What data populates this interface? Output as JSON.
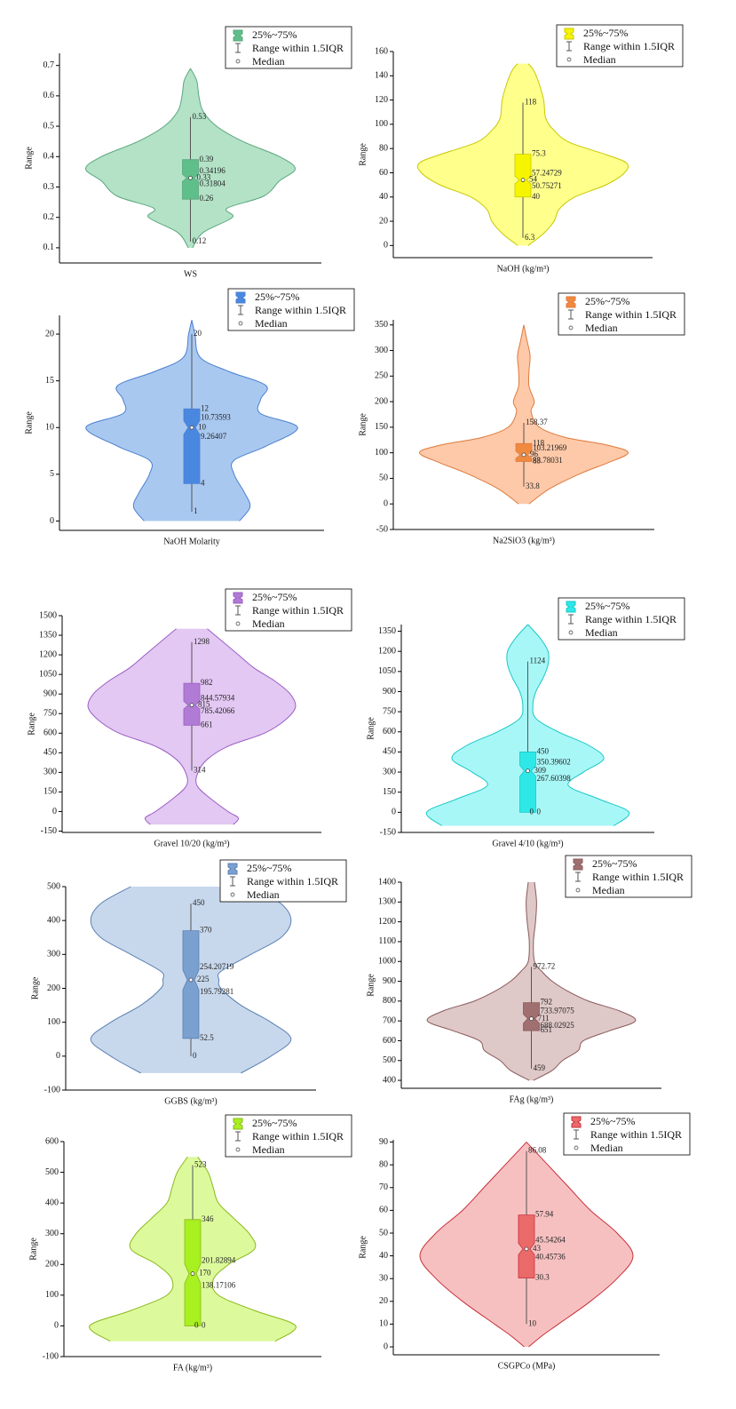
{
  "chart_data": [
    {
      "type": "violin",
      "x_label": "WS",
      "y_label": "Range",
      "legend": [
        "25%~75%",
        "Range within 1.5IQR",
        "Median"
      ],
      "color": {
        "fill": "#b3e2c7",
        "stroke": "#5aa77d",
        "box": "#5fbf8a"
      },
      "ylim": [
        0.05,
        0.74
      ],
      "yticks": [
        0.1,
        0.2,
        0.3,
        0.4,
        0.5,
        0.6,
        0.7
      ],
      "box": {
        "whisker_low": 0.12,
        "q1": 0.26,
        "notch_low": 0.31804,
        "median": 0.33,
        "notch_high": 0.34196,
        "q3": 0.39,
        "whisker_high": 0.53
      },
      "violin": {
        "y": [
          0.1,
          0.15,
          0.2,
          0.23,
          0.27,
          0.32,
          0.36,
          0.4,
          0.45,
          0.5,
          0.55,
          0.6,
          0.65,
          0.69
        ],
        "density": [
          0.02,
          0.12,
          0.4,
          0.35,
          0.7,
          0.85,
          1.0,
          0.85,
          0.5,
          0.25,
          0.12,
          0.08,
          0.06,
          0.0
        ]
      }
    },
    {
      "type": "violin",
      "x_label": "NaOH (kg/m³)",
      "y_label": "Range",
      "legend": [
        "25%~75%",
        "Range within 1.5IQR",
        "Median"
      ],
      "color": {
        "fill": "#ffff8c",
        "stroke": "#c8c800",
        "box": "#f5f500"
      },
      "ylim": [
        -10,
        160
      ],
      "yticks": [
        0,
        20,
        40,
        60,
        80,
        100,
        120,
        140,
        160
      ],
      "box": {
        "whisker_low": 6.3,
        "q1": 40,
        "notch_low": 50.75271,
        "median": 54,
        "notch_high": 57.24729,
        "q3": 75.3,
        "whisker_high": 118
      },
      "violin": {
        "y": [
          0,
          10,
          20,
          30,
          40,
          50,
          60,
          68,
          75,
          85,
          95,
          105,
          120,
          135,
          145,
          150
        ],
        "density": [
          0.05,
          0.2,
          0.3,
          0.35,
          0.5,
          0.8,
          0.98,
          1.0,
          0.8,
          0.45,
          0.3,
          0.22,
          0.2,
          0.15,
          0.1,
          0.05
        ]
      }
    },
    {
      "type": "violin",
      "x_label": "NaOH Molarity",
      "y_label": "Range",
      "legend": [
        "25%~75%",
        "Range within 1.5IQR",
        "Median"
      ],
      "color": {
        "fill": "#a9c8f0",
        "stroke": "#4a7fcf",
        "box": "#4a88e0"
      },
      "ylim": [
        -1,
        22
      ],
      "yticks": [
        0,
        5,
        10,
        15,
        20
      ],
      "box": {
        "whisker_low": 1,
        "q1": 4,
        "notch_low": 9.26407,
        "median": 10,
        "notch_high": 10.73593,
        "q3": 12,
        "whisker_high": 20
      },
      "violin": {
        "y": [
          0,
          1.5,
          3,
          5,
          6.5,
          8,
          10,
          11.5,
          13,
          14.5,
          16,
          17.5,
          20,
          21.5
        ],
        "density": [
          0.45,
          0.55,
          0.5,
          0.4,
          0.4,
          0.7,
          1.0,
          0.65,
          0.65,
          0.7,
          0.35,
          0.08,
          0.03,
          0.0
        ]
      }
    },
    {
      "type": "violin",
      "x_label": "Na2SiO3 (kg/m³)",
      "y_label": "Range",
      "legend": [
        "25%~75%",
        "Range within 1.5IQR",
        "Median"
      ],
      "color": {
        "fill": "#fdc9a9",
        "stroke": "#e07a3c",
        "box": "#f08a40"
      },
      "ylim": [
        -50,
        360
      ],
      "yticks": [
        -50,
        0,
        50,
        100,
        150,
        200,
        250,
        300,
        350
      ],
      "box": {
        "whisker_low": 33.8,
        "q1": 83,
        "notch_low": 88.78031,
        "median": 96,
        "notch_high": 103.21969,
        "q3": 118,
        "whisker_high": 158.37
      },
      "violin": {
        "y": [
          0,
          30,
          60,
          80,
          100,
          115,
          130,
          150,
          180,
          200,
          230,
          260,
          290,
          320,
          350
        ],
        "density": [
          0.05,
          0.25,
          0.55,
          0.8,
          1.0,
          0.8,
          0.4,
          0.15,
          0.07,
          0.1,
          0.05,
          0.05,
          0.06,
          0.03,
          0.0
        ]
      }
    },
    {
      "type": "violin",
      "x_label": "Gravel 10/20 (kg/m³)",
      "y_label": "Range",
      "legend": [
        "25%~75%",
        "Range within 1.5IQR",
        "Median"
      ],
      "color": {
        "fill": "#e2c8f2",
        "stroke": "#9c5ec5",
        "box": "#b07bd4"
      },
      "ylim": [
        -160,
        1500
      ],
      "yticks": [
        -150,
        0,
        150,
        300,
        450,
        600,
        750,
        900,
        1050,
        1200,
        1350,
        1500
      ],
      "box": {
        "whisker_low": 314,
        "q1": 661,
        "notch_low": 785.42066,
        "median": 815,
        "notch_high": 844.57934,
        "q3": 982,
        "whisker_high": 1298
      },
      "violin": {
        "y": [
          -100,
          -50,
          0,
          100,
          200,
          300,
          400,
          500,
          600,
          700,
          800,
          900,
          1000,
          1100,
          1200,
          1300,
          1400
        ],
        "density": [
          0.4,
          0.45,
          0.35,
          0.18,
          0.05,
          0.06,
          0.15,
          0.35,
          0.7,
          0.9,
          1.0,
          0.95,
          0.8,
          0.6,
          0.45,
          0.3,
          0.15
        ]
      }
    },
    {
      "type": "violin",
      "x_label": "Gravel 4/10 (kg/m³)",
      "y_label": "Range",
      "legend": [
        "25%~75%",
        "Range within 1.5IQR",
        "Median"
      ],
      "color": {
        "fill": "#a8f7f7",
        "stroke": "#1bc7c7",
        "box": "#2ee8e8"
      },
      "ylim": [
        -150,
        1400
      ],
      "yticks": [
        -150,
        0,
        150,
        300,
        450,
        600,
        750,
        900,
        1050,
        1200,
        1350
      ],
      "box": {
        "whisker_low": 0,
        "q1": 0,
        "notch_low": 267.60398,
        "median": 309,
        "notch_high": 350.39602,
        "q3": 450,
        "whisker_high": 1124
      },
      "violin": {
        "y": [
          -100,
          0,
          100,
          200,
          300,
          400,
          500,
          600,
          700,
          800,
          900,
          1000,
          1100,
          1200,
          1300,
          1400
        ],
        "density": [
          0.85,
          1.0,
          0.7,
          0.4,
          0.55,
          0.75,
          0.6,
          0.3,
          0.08,
          0.05,
          0.08,
          0.15,
          0.2,
          0.2,
          0.12,
          0.0
        ]
      }
    },
    {
      "type": "violin",
      "x_label": "GGBS (kg/m³)",
      "y_label": "Range",
      "legend": [
        "25%~75%",
        "Range within 1.5IQR",
        "Median"
      ],
      "color": {
        "fill": "#c8d8ec",
        "stroke": "#5a80b4",
        "box": "#7aa0cf"
      },
      "ylim": [
        -100,
        500
      ],
      "yticks": [
        -100,
        0,
        100,
        200,
        300,
        400,
        500
      ],
      "box": {
        "whisker_low": 0,
        "q1": 52.5,
        "notch_low": 195.79281,
        "median": 225,
        "notch_high": 254.20719,
        "q3": 370,
        "whisker_high": 450
      },
      "violin": {
        "y": [
          -50,
          0,
          50,
          100,
          150,
          200,
          225,
          250,
          300,
          350,
          400,
          450,
          500
        ],
        "density": [
          0.5,
          0.8,
          1.0,
          0.8,
          0.5,
          0.3,
          0.28,
          0.3,
          0.6,
          0.9,
          1.0,
          0.9,
          0.6
        ]
      }
    },
    {
      "type": "violin",
      "x_label": "FAg (kg/m³)",
      "y_label": "Range",
      "legend": [
        "25%~75%",
        "Range within 1.5IQR",
        "Median"
      ],
      "color": {
        "fill": "#dfc8c8",
        "stroke": "#8a5a5a",
        "box": "#a07070"
      },
      "ylim": [
        360,
        1400
      ],
      "yticks": [
        400,
        500,
        600,
        700,
        800,
        900,
        1000,
        1100,
        1200,
        1300,
        1400
      ],
      "box": {
        "whisker_low": 459,
        "q1": 651,
        "notch_low": 688.02925,
        "median": 711,
        "notch_high": 733.97075,
        "q3": 792,
        "whisker_high": 972.72
      },
      "violin": {
        "y": [
          400,
          450,
          500,
          550,
          600,
          650,
          700,
          750,
          800,
          850,
          900,
          950,
          1000,
          1100,
          1200,
          1300,
          1400
        ],
        "density": [
          0.02,
          0.2,
          0.3,
          0.45,
          0.5,
          0.75,
          1.0,
          0.85,
          0.55,
          0.35,
          0.2,
          0.1,
          0.03,
          0.02,
          0.04,
          0.05,
          0.03
        ]
      }
    },
    {
      "type": "violin",
      "x_label": "FA (kg/m³)",
      "y_label": "Range",
      "legend": [
        "25%~75%",
        "Range within 1.5IQR",
        "Median"
      ],
      "color": {
        "fill": "#dcfa9c",
        "stroke": "#8ab81a",
        "box": "#a8f020"
      },
      "ylim": [
        -100,
        600
      ],
      "yticks": [
        -100,
        0,
        100,
        200,
        300,
        400,
        500,
        600
      ],
      "box": {
        "whisker_low": 0,
        "q1": 0,
        "notch_low": 138.17106,
        "median": 170,
        "notch_high": 201.82894,
        "q3": 346,
        "whisker_high": 523
      },
      "violin": {
        "y": [
          -50,
          0,
          50,
          100,
          150,
          200,
          250,
          300,
          350,
          400,
          450,
          500,
          550
        ],
        "density": [
          0.8,
          1.0,
          0.6,
          0.25,
          0.2,
          0.35,
          0.6,
          0.55,
          0.4,
          0.25,
          0.2,
          0.15,
          0.05
        ]
      }
    },
    {
      "type": "violin",
      "x_label": "CSGPCo (MPa)",
      "y_label": "Range",
      "legend": [
        "25%~75%",
        "Range within 1.5IQR",
        "Median"
      ],
      "color": {
        "fill": "#f7c0c0",
        "stroke": "#c8303a",
        "box": "#ea6a6a"
      },
      "ylim": [
        -3.5,
        91
      ],
      "yticks": [
        0,
        10,
        20,
        30,
        40,
        50,
        60,
        70,
        80,
        90
      ],
      "box": {
        "whisker_low": 10,
        "q1": 30.3,
        "notch_low": 40.45736,
        "median": 43,
        "notch_high": 45.54264,
        "q3": 57.94,
        "whisker_high": 86.08
      },
      "violin": {
        "y": [
          0,
          5,
          10,
          20,
          30,
          40,
          50,
          60,
          70,
          80,
          86,
          90
        ],
        "density": [
          0.02,
          0.15,
          0.3,
          0.6,
          0.85,
          1.0,
          0.85,
          0.6,
          0.4,
          0.2,
          0.08,
          0.0
        ]
      }
    }
  ]
}
